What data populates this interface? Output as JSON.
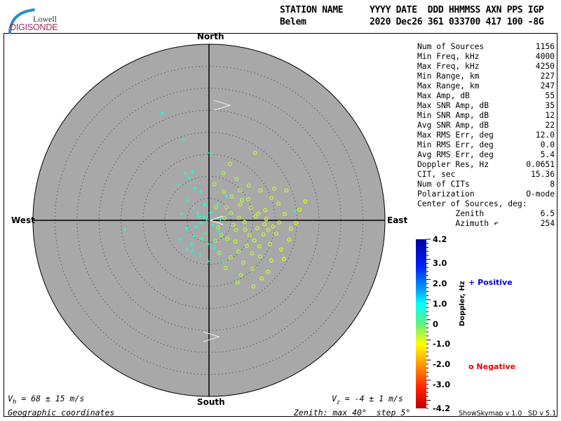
{
  "header": {
    "logo_top": "Lowell",
    "logo_bottom": "DIGISONDE",
    "station_label": "STATION NAME",
    "station_value": "Belem",
    "cols_label": "YYYY DATE  DDD HHMMSS AXN PPS IGP",
    "cols_value": "2020 Dec26 361 033700 417 100 -8G"
  },
  "compass": {
    "north": "North",
    "south": "South",
    "west": "West",
    "east": "East"
  },
  "stats": [
    {
      "label": "Num of Sources",
      "value": "1156"
    },
    {
      "label": "Min Freq, kHz",
      "value": "4000"
    },
    {
      "label": "Max Freq, kHz",
      "value": "4250"
    },
    {
      "label": "Min Range, km",
      "value": "227"
    },
    {
      "label": "Max Range, km",
      "value": "247"
    },
    {
      "label": "Max Amp, dB",
      "value": "55"
    },
    {
      "label": "Max SNR Amp, dB",
      "value": "35"
    },
    {
      "label": "Min SNR Amp, dB",
      "value": "12"
    },
    {
      "label": "Avg SNR Amp, dB",
      "value": "22"
    },
    {
      "label": "Max RMS Err, deg",
      "value": "12.0"
    },
    {
      "label": "Min RMS Err, deg",
      "value": "0.0"
    },
    {
      "label": "Avg RMS Err, deg",
      "value": "5.4"
    },
    {
      "label": "Doppler Res, Hz",
      "value": "0.0651"
    },
    {
      "label": "CIT, sec",
      "value": "15.36"
    },
    {
      "label": "Num of CITs",
      "value": "8"
    },
    {
      "label": "Polarization",
      "value": "O-mode"
    },
    {
      "label": "Center of Sources, deg:",
      "value": ""
    },
    {
      "label": "        Zenith",
      "value": "6.5"
    },
    {
      "label": "        Azimuth ↶",
      "value": "254"
    }
  ],
  "footer": {
    "vh": "V_h = 68 ± 15 m/s",
    "vh_sym": "V",
    "vh_sub": "h",
    "vh_rest": " = 68 ± 15 m/s",
    "vz_sym": "V",
    "vz_sub": "z",
    "vz_rest": " = -4 ± 1 m/s",
    "coords": "Geographic coordinates",
    "zenith": "Zenith: max 40°  step 5°",
    "version1": "ShowSkymap v 1.0",
    "version2": "SD v 5.1"
  },
  "legend": {
    "positive": "Positive",
    "negative": "Negative",
    "positive_symbol": "+",
    "negative_symbol": "o",
    "positive_color": "#0000ee",
    "negative_color": "#ee0000"
  },
  "colors": {
    "disk": "#a8a8a8",
    "rings": "#666666"
  },
  "chart_data": {
    "type": "scatter",
    "projection": "polar skymap (zenith/azimuth), East-West / North-South in degrees of zenith",
    "zenith_max": 40,
    "zenith_step": 5,
    "colorbar": {
      "label": "Doppler, Hz",
      "range": [
        -4.2,
        4.2
      ],
      "ticks": [
        "4.2",
        "3.0",
        "2.0",
        "1.0",
        "0",
        "-1.0",
        "-2.0",
        "-3.0",
        "-4.2"
      ],
      "tick_values": [
        4.2,
        3.0,
        2.0,
        1.0,
        0,
        -1.0,
        -2.0,
        -3.0,
        -4.2
      ]
    },
    "positive_points": [
      [
        -10.6,
        24.4,
        0.9
      ],
      [
        -5.9,
        18.3,
        0.8
      ],
      [
        0.3,
        15.3,
        0.7
      ],
      [
        -3.8,
        11.0,
        0.8
      ],
      [
        -5.4,
        10.7,
        0.9
      ],
      [
        -4.6,
        9.6,
        0.7
      ],
      [
        -6.7,
        8.0,
        0.8
      ],
      [
        -3.2,
        7.3,
        0.7
      ],
      [
        -1.9,
        6.5,
        0.6
      ],
      [
        -4.9,
        4.5,
        0.8
      ],
      [
        -3.5,
        2.9,
        0.7
      ],
      [
        -2.6,
        1.6,
        0.6
      ],
      [
        -1.1,
        0.8,
        0.5
      ],
      [
        -0.5,
        0.2,
        0.4
      ],
      [
        -1.8,
        -0.6,
        0.6
      ],
      [
        -2.9,
        -1.5,
        0.7
      ],
      [
        -3.4,
        -3.6,
        0.8
      ],
      [
        -1.6,
        -4.2,
        0.6
      ],
      [
        -0.2,
        -5.4,
        0.5
      ],
      [
        1.2,
        -6.3,
        0.5
      ],
      [
        -3.8,
        -7.0,
        0.7
      ],
      [
        -0.2,
        -9.3,
        0.5
      ],
      [
        -19.1,
        -2.1,
        0.6
      ],
      [
        3.2,
        -9.4,
        0.4
      ],
      [
        4.0,
        5.6,
        0.4
      ],
      [
        1.9,
        3.7,
        0.5
      ],
      [
        -5.1,
        -1.9,
        0.8
      ],
      [
        -0.8,
        -3.0,
        0.6
      ],
      [
        0.5,
        1.7,
        0.5
      ],
      [
        2.2,
        -2.4,
        0.4
      ],
      [
        19.5,
        2.1,
        0.4
      ],
      [
        -6.2,
        1.5,
        0.9
      ],
      [
        -4.0,
        -5.5,
        0.7
      ],
      [
        -2.4,
        0.9,
        0.6
      ],
      [
        2.6,
        0.2,
        0.4
      ],
      [
        -5.0,
        -6.6,
        0.5
      ],
      [
        -6.5,
        -4.3,
        0.8
      ],
      [
        -1.0,
        3.6,
        0.6
      ],
      [
        0.9,
        -1.1,
        0.5
      ],
      [
        -2.0,
        -7.8,
        0.6
      ]
    ],
    "negative_points": [
      [
        1.2,
        8.2,
        -0.4
      ],
      [
        3.4,
        6.5,
        -0.5
      ],
      [
        5.2,
        5.4,
        -0.5
      ],
      [
        7.1,
        3.6,
        -0.6
      ],
      [
        9.5,
        2.8,
        -0.6
      ],
      [
        11.2,
        1.5,
        -0.7
      ],
      [
        13.0,
        0.3,
        -0.7
      ],
      [
        14.6,
        -1.4,
        -0.8
      ],
      [
        12.4,
        -3.2,
        -0.7
      ],
      [
        10.3,
        -4.6,
        -0.6
      ],
      [
        8.6,
        -5.8,
        -0.6
      ],
      [
        6.7,
        -7.1,
        -0.5
      ],
      [
        4.9,
        -8.4,
        -0.4
      ],
      [
        7.8,
        -9.6,
        -0.5
      ],
      [
        9.9,
        -11.0,
        -0.6
      ],
      [
        11.6,
        -8.2,
        -0.7
      ],
      [
        13.9,
        -5.4,
        -0.8
      ],
      [
        15.3,
        -3.0,
        -0.8
      ],
      [
        17.2,
        1.4,
        -0.8
      ],
      [
        20.6,
        2.4,
        -0.9
      ],
      [
        18.6,
        -1.9,
        -0.9
      ],
      [
        16.4,
        -6.6,
        -0.9
      ],
      [
        14.2,
        -9.1,
        -0.8
      ],
      [
        12.0,
        -13.2,
        -0.7
      ],
      [
        10.1,
        -15.0,
        -0.6
      ],
      [
        6.5,
        -14.1,
        -0.5
      ],
      [
        3.8,
        -10.8,
        -0.4
      ],
      [
        2.4,
        -7.4,
        -0.3
      ],
      [
        4.2,
        -4.2,
        -0.4
      ],
      [
        6.1,
        -2.2,
        -0.5
      ],
      [
        8.1,
        -0.4,
        -0.6
      ],
      [
        10.6,
        0.9,
        -0.6
      ],
      [
        12.8,
        2.3,
        -0.7
      ],
      [
        15.8,
        3.8,
        -0.8
      ],
      [
        14.2,
        5.1,
        -0.7
      ],
      [
        11.7,
        6.8,
        -0.6
      ],
      [
        9.0,
        7.9,
        -0.5
      ],
      [
        6.3,
        9.4,
        -0.4
      ],
      [
        3.3,
        10.7,
        -0.3
      ],
      [
        4.8,
        12.8,
        -0.4
      ],
      [
        10.5,
        15.3,
        -0.5
      ],
      [
        14.8,
        7.2,
        -0.7
      ],
      [
        17.6,
        6.8,
        -0.8
      ],
      [
        21.9,
        4.3,
        -0.9
      ],
      [
        19.8,
        -0.6,
        -0.9
      ],
      [
        18.2,
        -4.4,
        -0.9
      ],
      [
        17.0,
        -8.8,
        -0.9
      ],
      [
        13.4,
        -11.7,
        -0.7
      ],
      [
        2.1,
        -1.6,
        -0.3
      ],
      [
        3.5,
        0.5,
        -0.4
      ],
      [
        5.0,
        1.6,
        -0.4
      ],
      [
        6.8,
        0.6,
        -0.5
      ],
      [
        8.2,
        -2.1,
        -0.6
      ],
      [
        9.2,
        -3.4,
        -0.6
      ],
      [
        5.5,
        -1.0,
        -0.5
      ],
      [
        4.0,
        2.9,
        -0.4
      ],
      [
        7.5,
        4.6,
        -0.5
      ],
      [
        11.0,
        -1.8,
        -0.7
      ],
      [
        12.6,
        -0.9,
        -0.7
      ],
      [
        1.6,
        3.0,
        -0.3
      ],
      [
        16.0,
        -0.5,
        -0.8
      ],
      [
        2.8,
        -3.3,
        -0.3
      ],
      [
        7.3,
        -12.4,
        -0.5
      ],
      [
        11.5,
        -5.9,
        -0.7
      ],
      [
        6.0,
        -4.8,
        -0.5
      ],
      [
        9.8,
        -7.5,
        -0.6
      ],
      [
        13.5,
        -2.2,
        -0.7
      ],
      [
        7.0,
        6.8,
        -0.5
      ],
      [
        1.5,
        -4.6,
        -0.3
      ],
      [
        8.9,
        4.8,
        -0.6
      ]
    ]
  }
}
